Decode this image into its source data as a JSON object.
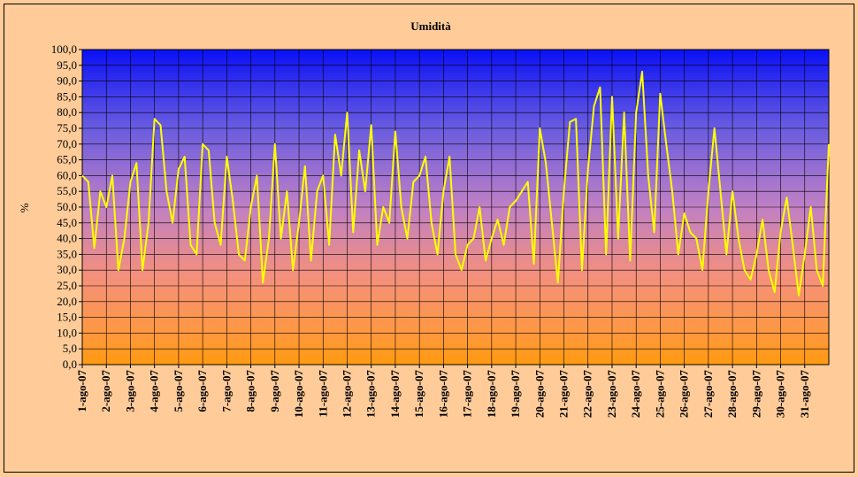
{
  "chart_data": {
    "type": "line",
    "title": "Umidità",
    "ylabel": "%",
    "x": [
      1,
      1.25,
      1.5,
      1.75,
      2,
      2.25,
      2.5,
      2.75,
      3,
      3.25,
      3.5,
      3.75,
      4,
      4.25,
      4.5,
      4.75,
      5,
      5.25,
      5.5,
      5.75,
      6,
      6.25,
      6.5,
      6.75,
      7,
      7.25,
      7.5,
      7.75,
      8,
      8.25,
      8.5,
      8.75,
      9,
      9.25,
      9.5,
      9.75,
      10,
      10.25,
      10.5,
      10.75,
      11,
      11.25,
      11.5,
      11.75,
      12,
      12.25,
      12.5,
      12.75,
      13,
      13.25,
      13.5,
      13.75,
      14,
      14.25,
      14.5,
      14.75,
      15,
      15.25,
      15.5,
      15.75,
      16,
      16.25,
      16.5,
      16.75,
      17,
      17.25,
      17.5,
      17.75,
      18,
      18.25,
      18.5,
      18.75,
      19,
      19.25,
      19.5,
      19.75,
      20,
      20.25,
      20.5,
      20.75,
      21,
      21.25,
      21.5,
      21.75,
      22,
      22.25,
      22.5,
      22.75,
      23,
      23.25,
      23.5,
      23.75,
      24,
      24.25,
      24.5,
      24.75,
      25,
      25.25,
      25.5,
      25.75,
      26,
      26.25,
      26.5,
      26.75,
      27,
      27.25,
      27.5,
      27.75,
      28,
      28.25,
      28.5,
      28.75,
      29,
      29.25,
      29.5,
      29.75,
      30,
      30.25,
      30.5,
      30.75,
      31,
      31.25,
      31.5,
      31.75,
      32
    ],
    "series": [
      {
        "name": "Umidità",
        "color": "#ffff00",
        "values": [
          60,
          58,
          37,
          55,
          50,
          60,
          30,
          40,
          58,
          64,
          30,
          45,
          78,
          76,
          55,
          45,
          62,
          66,
          38,
          35,
          70,
          68,
          45,
          38,
          66,
          52,
          35,
          33,
          50,
          60,
          26,
          40,
          70,
          40,
          55,
          30,
          45,
          63,
          33,
          55,
          60,
          38,
          73,
          60,
          80,
          42,
          68,
          55,
          76,
          38,
          50,
          45,
          74,
          50,
          40,
          58,
          60,
          66,
          45,
          35,
          55,
          66,
          35,
          30,
          38,
          40,
          50,
          33,
          40,
          46,
          38,
          50,
          52,
          55,
          58,
          32,
          75,
          64,
          45,
          26,
          55,
          77,
          78,
          30,
          62,
          82,
          88,
          35,
          85,
          40,
          80,
          33,
          80,
          93,
          60,
          42,
          86,
          70,
          55,
          35,
          48,
          42,
          40,
          30,
          55,
          75,
          55,
          35,
          55,
          40,
          30,
          27,
          35,
          46,
          30,
          23,
          42,
          53,
          38,
          22,
          35,
          50,
          30,
          25,
          70
        ]
      }
    ],
    "xlim": [
      1,
      32
    ],
    "xticks": [
      {
        "value": 1,
        "label": "1-ago-07"
      },
      {
        "value": 2,
        "label": "2-ago-07"
      },
      {
        "value": 3,
        "label": "3-ago-07"
      },
      {
        "value": 4,
        "label": "4-ago-07"
      },
      {
        "value": 5,
        "label": "5-ago-07"
      },
      {
        "value": 6,
        "label": "6-ago-07"
      },
      {
        "value": 7,
        "label": "7-ago-07"
      },
      {
        "value": 8,
        "label": "8-ago-07"
      },
      {
        "value": 9,
        "label": "9-ago-07"
      },
      {
        "value": 10,
        "label": "10-ago-07"
      },
      {
        "value": 11,
        "label": "11-ago-07"
      },
      {
        "value": 12,
        "label": "12-ago-07"
      },
      {
        "value": 13,
        "label": "13-ago-07"
      },
      {
        "value": 14,
        "label": "14-ago-07"
      },
      {
        "value": 15,
        "label": "15-ago-07"
      },
      {
        "value": 16,
        "label": "16-ago-07"
      },
      {
        "value": 17,
        "label": "17-ago-07"
      },
      {
        "value": 18,
        "label": "18-ago-07"
      },
      {
        "value": 19,
        "label": "19-ago-07"
      },
      {
        "value": 20,
        "label": "20-ago-07"
      },
      {
        "value": 21,
        "label": "21-ago-07"
      },
      {
        "value": 22,
        "label": "22-ago-07"
      },
      {
        "value": 23,
        "label": "23-ago-07"
      },
      {
        "value": 24,
        "label": "24-ago-07"
      },
      {
        "value": 25,
        "label": "25-ago-07"
      },
      {
        "value": 26,
        "label": "26-ago-07"
      },
      {
        "value": 27,
        "label": "27-ago-07"
      },
      {
        "value": 28,
        "label": "28-ago-07"
      },
      {
        "value": 29,
        "label": "29-ago-07"
      },
      {
        "value": 30,
        "label": "30-ago-07"
      },
      {
        "value": 31,
        "label": "31-ago-07"
      }
    ],
    "ylim": [
      0,
      100
    ],
    "yticks": [
      {
        "value": 0,
        "label": "0,0"
      },
      {
        "value": 5,
        "label": "5,0"
      },
      {
        "value": 10,
        "label": "10,0"
      },
      {
        "value": 15,
        "label": "15,0"
      },
      {
        "value": 20,
        "label": "20,0"
      },
      {
        "value": 25,
        "label": "25,0"
      },
      {
        "value": 30,
        "label": "30,0"
      },
      {
        "value": 35,
        "label": "35,0"
      },
      {
        "value": 40,
        "label": "40,0"
      },
      {
        "value": 45,
        "label": "45,0"
      },
      {
        "value": 50,
        "label": "50,0"
      },
      {
        "value": 55,
        "label": "55,0"
      },
      {
        "value": 60,
        "label": "60,0"
      },
      {
        "value": 65,
        "label": "65,0"
      },
      {
        "value": 70,
        "label": "70,0"
      },
      {
        "value": 75,
        "label": "75,0"
      },
      {
        "value": 80,
        "label": "80,0"
      },
      {
        "value": 85,
        "label": "85,0"
      },
      {
        "value": 90,
        "label": "90,0"
      },
      {
        "value": 95,
        "label": "95,0"
      },
      {
        "value": 100,
        "label": "100,0"
      }
    ],
    "grid": true
  }
}
